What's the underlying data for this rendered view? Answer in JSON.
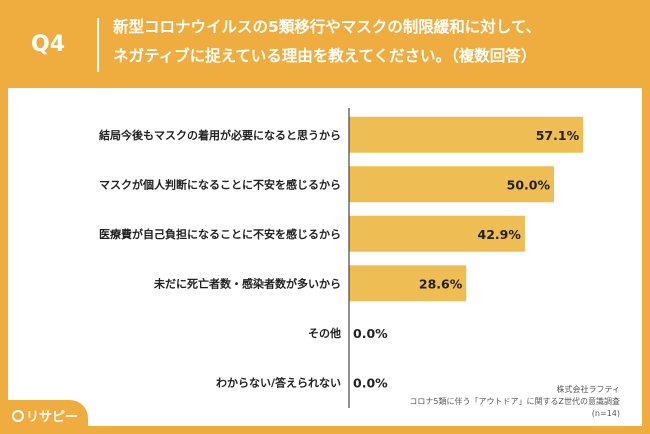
{
  "header": {
    "question_label": "Q4",
    "title_line1": "新型コロナウイルスの5類移行やマスクの制限緩和に対して、",
    "title_line2": "ネガティブに捉えている理由を教えてください。（複数回答）"
  },
  "brand": {
    "logo": "リサピー"
  },
  "source": {
    "company": "株式会社ラフティ",
    "survey": "コロナ5類に伴う「アウトドア」に関するZ世代の意識調査",
    "sample": "(n=14)"
  },
  "colors": {
    "accent": "#f0ad3f",
    "bar": "#eebd53",
    "axis": "#222222"
  },
  "chart_data": {
    "type": "bar",
    "orientation": "horizontal",
    "categories": [
      "結局今後もマスクの着用が必要になると思うから",
      "マスクが個人判断になることに不安を感じるから",
      "医療費が自己負担になることに不安を感じるから",
      "未だに死亡者数・感染者数が多いから",
      "その他",
      "わからない/答えられない"
    ],
    "values": [
      57.1,
      50.0,
      42.9,
      28.6,
      0.0,
      0.0
    ],
    "labels": [
      "57.1%",
      "50.0%",
      "42.9%",
      "28.6%",
      "0.0%",
      "0.0%"
    ],
    "xlim": [
      0,
      100
    ]
  }
}
